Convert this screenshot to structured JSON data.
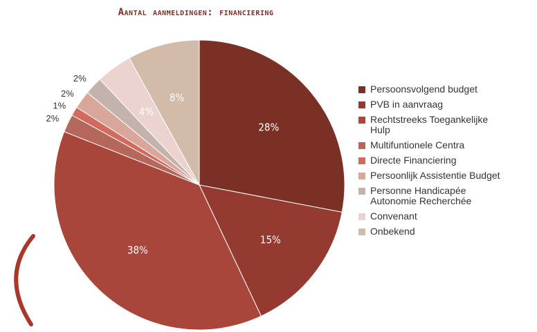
{
  "chart_data": {
    "type": "pie",
    "title": "Aantal aanmeldingen: financiering",
    "categories": [
      "Persoonsvolgend budget",
      "PVB in aanvraag",
      "Rechtstreeks Toegankelijke Hulp",
      "Multifuntionele Centra",
      "Directe Financiering",
      "Persoonlijk Assistentie Budget",
      "Personne Handicapée Autonomie Recherchée",
      "Convenant",
      "Onbekend"
    ],
    "values": [
      28,
      15,
      38,
      2,
      1,
      2,
      2,
      4,
      8
    ],
    "value_labels": [
      "28%",
      "15%",
      "38%",
      "2%",
      "1%",
      "2%",
      "2%",
      "4%",
      "8%"
    ],
    "colors": [
      "#7b3026",
      "#943a30",
      "#a8463c",
      "#b5675b",
      "#d26a5e",
      "#d9a69c",
      "#c4b3ad",
      "#ecd3d0",
      "#d2bba9"
    ],
    "legend": "right"
  }
}
